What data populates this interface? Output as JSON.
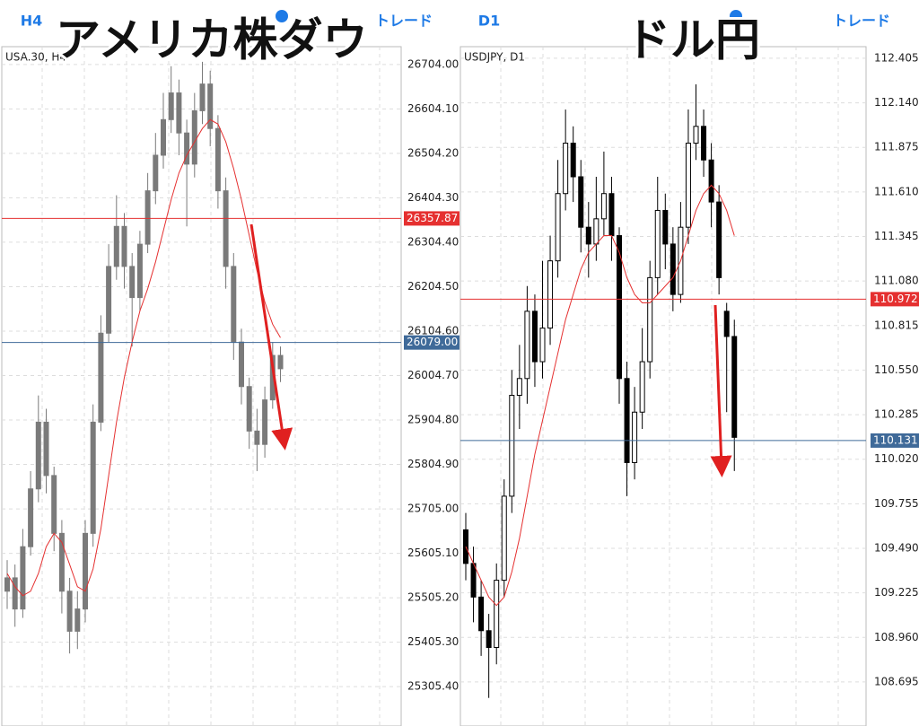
{
  "chart_data": [
    {
      "type": "candlestick",
      "timeframe": "H4",
      "trade_button": "トレード",
      "overlay_title": "アメリカ株ダウ",
      "symbol": "USA.30, H4",
      "up_color": "#7a7a7a",
      "down_color": "#7a7a7a",
      "edge_color": "#7a7a7a",
      "ma_color": "#e53030",
      "grid": true,
      "ylim": [
        25217,
        26744
      ],
      "yticks": [
        {
          "value": 26704.0,
          "label": "26704.00"
        },
        {
          "value": 26604.1,
          "label": "26604.10"
        },
        {
          "value": 26504.2,
          "label": "26504.20"
        },
        {
          "value": 26404.3,
          "label": "26404.30"
        },
        {
          "value": 26304.4,
          "label": "26304.40"
        },
        {
          "value": 26204.5,
          "label": "26204.50"
        },
        {
          "value": 26104.6,
          "label": "26104.60"
        },
        {
          "value": 26004.7,
          "label": "26004.70"
        },
        {
          "value": 25904.8,
          "label": "25904.80"
        },
        {
          "value": 25804.9,
          "label": "25804.90"
        },
        {
          "value": 25705.0,
          "label": "25705.00"
        },
        {
          "value": 25605.1,
          "label": "25605.10"
        },
        {
          "value": 25505.2,
          "label": "25505.20"
        },
        {
          "value": 25405.3,
          "label": "25405.30"
        },
        {
          "value": 25305.4,
          "label": "25305.40"
        }
      ],
      "hlines": [
        {
          "value": 26357.87,
          "color": "#e53030"
        },
        {
          "value": 26079.0,
          "label": "26079.00",
          "color": "#3f6a99"
        }
      ],
      "open": [
        25520,
        25550,
        25480,
        25620,
        25750,
        25900,
        25780,
        25650,
        25520,
        25430,
        25480,
        25650,
        25900,
        26100,
        26250,
        26340,
        26250,
        26180,
        26300,
        26420,
        26500,
        26580,
        26640,
        26550,
        26480,
        26600,
        26660,
        26560,
        26420,
        26250,
        26080,
        25980,
        25880,
        25850,
        25950,
        26050
      ],
      "high": [
        25590,
        25580,
        25660,
        25790,
        25960,
        25930,
        25800,
        25680,
        25550,
        25520,
        25680,
        25940,
        26140,
        26300,
        26410,
        26370,
        26280,
        26330,
        26460,
        26550,
        26640,
        26700,
        26670,
        26580,
        26640,
        26710,
        26690,
        26590,
        26450,
        26280,
        26110,
        26000,
        25930,
        25980,
        26080,
        26070
      ],
      "low": [
        25480,
        25440,
        25460,
        25600,
        25720,
        25740,
        25610,
        25470,
        25380,
        25390,
        25450,
        25620,
        25880,
        26080,
        26220,
        26200,
        26070,
        26150,
        26280,
        26390,
        26470,
        26550,
        26500,
        26340,
        26450,
        26570,
        26520,
        26380,
        26200,
        26040,
        25940,
        25840,
        25790,
        25820,
        25930,
        25990
      ],
      "close": [
        25550,
        25480,
        25620,
        25750,
        25900,
        25780,
        25650,
        25520,
        25430,
        25480,
        25650,
        25900,
        26100,
        26250,
        26340,
        26250,
        26180,
        26300,
        26420,
        26500,
        26580,
        26640,
        26550,
        26480,
        26600,
        26660,
        26560,
        26420,
        26250,
        26080,
        25980,
        25880,
        25850,
        25950,
        26050,
        26020
      ],
      "ma": [
        25560,
        25530,
        25510,
        25520,
        25560,
        25620,
        25650,
        25630,
        25580,
        25530,
        25520,
        25570,
        25660,
        25780,
        25900,
        26000,
        26080,
        26150,
        26200,
        26260,
        26330,
        26400,
        26460,
        26500,
        26530,
        26560,
        26580,
        26570,
        26530,
        26470,
        26400,
        26320,
        26240,
        26170,
        26120,
        26090
      ]
    },
    {
      "type": "candlestick",
      "timeframe": "D1",
      "trade_button": "トレード",
      "overlay_title": "ドル円",
      "symbol": "USDJPY, D1",
      "up_color": "#ffffff",
      "down_color": "#000000",
      "edge_color": "#000000",
      "ma_color": "#e53030",
      "grid": true,
      "ylim": [
        108.433,
        112.474
      ],
      "yticks": [
        112.405,
        {
          "value": 112.14,
          "label": "112.140"
        },
        111.875,
        {
          "value": 111.61,
          "label": "111.610"
        },
        111.345,
        {
          "value": 111.08,
          "label": "111.080"
        },
        110.815,
        {
          "value": 110.55,
          "label": "110.550"
        },
        110.285,
        {
          "value": 110.02,
          "label": "110.020"
        },
        109.755,
        {
          "value": 109.49,
          "label": "109.490"
        },
        109.225,
        {
          "value": 108.96,
          "label": "108.960"
        },
        108.695
      ],
      "hlines": [
        {
          "value": 110.972,
          "color": "#e53030"
        },
        {
          "value": 110.131,
          "color": "#3f6a99"
        }
      ],
      "open": [
        109.6,
        109.4,
        109.2,
        109.0,
        108.9,
        109.3,
        109.8,
        110.4,
        110.5,
        110.9,
        110.6,
        110.8,
        111.2,
        111.6,
        111.9,
        111.7,
        111.4,
        111.3,
        111.45,
        111.6,
        111.35,
        110.5,
        110.0,
        110.3,
        110.6,
        111.1,
        111.5,
        111.3,
        111.0,
        111.4,
        111.9,
        112.0,
        111.8,
        111.55,
        110.9,
        110.75
      ],
      "high": [
        109.7,
        109.5,
        109.3,
        109.1,
        109.4,
        109.9,
        110.55,
        110.7,
        111.05,
        111.0,
        111.2,
        111.35,
        111.8,
        112.1,
        112.0,
        111.8,
        111.55,
        111.7,
        111.85,
        111.7,
        111.4,
        110.6,
        110.45,
        110.8,
        111.2,
        111.7,
        111.6,
        111.4,
        111.55,
        112.1,
        112.25,
        112.1,
        111.9,
        111.65,
        110.95,
        110.85
      ],
      "low": [
        109.3,
        109.05,
        108.85,
        108.6,
        108.8,
        109.2,
        109.7,
        110.2,
        110.35,
        110.45,
        110.5,
        110.7,
        111.1,
        111.5,
        111.55,
        111.25,
        111.1,
        111.2,
        111.35,
        111.2,
        110.35,
        109.8,
        109.9,
        110.2,
        110.5,
        111.0,
        111.15,
        110.9,
        110.95,
        111.3,
        111.8,
        111.7,
        111.4,
        111.0,
        110.3,
        109.95
      ],
      "close": [
        109.4,
        109.2,
        109.0,
        108.9,
        109.3,
        109.8,
        110.4,
        110.5,
        110.9,
        110.6,
        110.8,
        111.2,
        111.6,
        111.9,
        111.7,
        111.4,
        111.3,
        111.45,
        111.6,
        111.35,
        110.5,
        110.0,
        110.3,
        110.6,
        111.1,
        111.5,
        111.3,
        111.0,
        111.4,
        111.9,
        112.0,
        111.8,
        111.55,
        111.1,
        110.75,
        110.15
      ],
      "ma": [
        109.5,
        109.4,
        109.3,
        109.2,
        109.15,
        109.2,
        109.35,
        109.55,
        109.8,
        110.05,
        110.25,
        110.45,
        110.65,
        110.85,
        111.0,
        111.15,
        111.25,
        111.3,
        111.35,
        111.35,
        111.25,
        111.1,
        111.0,
        110.95,
        110.95,
        111.0,
        111.05,
        111.1,
        111.2,
        111.35,
        111.5,
        111.6,
        111.65,
        111.6,
        111.5,
        111.35
      ]
    }
  ]
}
